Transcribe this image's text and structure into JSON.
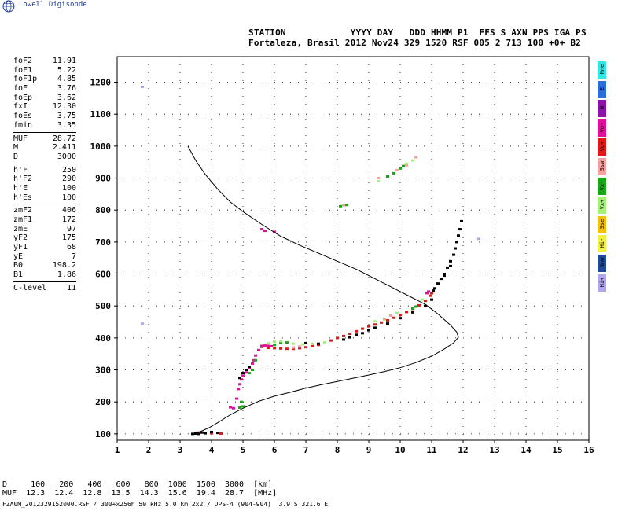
{
  "brand": "Lowell Digisonde",
  "header": {
    "line1": "STATION            YYYY DAY   DDD HHMM P1  FFS S AXN PPS IGA PS",
    "line2": "Fortaleza, Brasil 2012 Nov24 329 1520 RSF 005 2 713 100 +0+ B2"
  },
  "params": [
    {
      "name": "foF2",
      "value": "11.91"
    },
    {
      "name": "foF1",
      "value": "5.22"
    },
    {
      "name": "foF1p",
      "value": "4.85"
    },
    {
      "name": "foE",
      "value": "3.76"
    },
    {
      "name": "foEp",
      "value": "3.62"
    },
    {
      "name": "fxI",
      "value": "12.30"
    },
    {
      "name": "foEs",
      "value": "3.75"
    },
    {
      "name": "fmin",
      "value": "3.35"
    },
    {
      "name": "MUF",
      "value": "28.72"
    },
    {
      "name": "M",
      "value": "2.411"
    },
    {
      "name": "D",
      "value": "3000"
    },
    {
      "name": "h'F",
      "value": "250"
    },
    {
      "name": "h'F2",
      "value": "290"
    },
    {
      "name": "h'E",
      "value": "100"
    },
    {
      "name": "h'Es",
      "value": "100"
    },
    {
      "name": "zmF2",
      "value": "406"
    },
    {
      "name": "zmF1",
      "value": "172"
    },
    {
      "name": "zmE",
      "value": "97"
    },
    {
      "name": "yF2",
      "value": "175"
    },
    {
      "name": "yF1",
      "value": "68"
    },
    {
      "name": "yE",
      "value": "7"
    },
    {
      "name": "B0",
      "value": "198.2"
    },
    {
      "name": "B1",
      "value": "1.86"
    },
    {
      "name": "C-level",
      "value": "11"
    }
  ],
  "legend": [
    {
      "label": "Nne",
      "color": "#33e6e6"
    },
    {
      "label": "E",
      "color": "#2b6fd6"
    },
    {
      "label": "W",
      "color": "#8a13a8"
    },
    {
      "label": "Vo-",
      "color": "#e0109a"
    },
    {
      "label": "Vo+",
      "color": "#e01818"
    },
    {
      "label": "Ssw",
      "color": "#f2a0a0"
    },
    {
      "label": "Vx-",
      "color": "#17a717"
    },
    {
      "label": "Vx+",
      "color": "#a6f07a"
    },
    {
      "label": "Sse",
      "color": "#f2c10d"
    },
    {
      "label": "Hi-",
      "color": "#f0f04a"
    },
    {
      "label": "Nnw",
      "color": "#1f4a9a"
    },
    {
      "label": "Hi+",
      "color": "#b0a8ea"
    }
  ],
  "muf_table": {
    "d_line": "D     100   200   400   600   800  1000  1500  3000  [km]",
    "muf_line": "MUF  12.3  12.4  12.8  13.5  14.3  15.6  19.4  28.7  [MHz]"
  },
  "footer": "FZA0M_2012329152000.RSF / 300+x256h 50 kHz 5.0 km 2x2 / DPS-4 (904-904)  3.9 S 321.6 E",
  "chart_data": {
    "type": "scatter",
    "title": "",
    "xlabel": "",
    "ylabel": "",
    "xlim": [
      1,
      16
    ],
    "ylim": [
      80,
      1280
    ],
    "x_ticks": [
      "1",
      "2",
      "3",
      "4",
      "5",
      "6",
      "7",
      "8",
      "9",
      "10",
      "11",
      "12",
      "13",
      "14",
      "15",
      "16"
    ],
    "y_ticks": [
      "100",
      "200",
      "300",
      "400",
      "500",
      "600",
      "700",
      "800",
      "900",
      "1000",
      "1100",
      "1200"
    ],
    "grid": true,
    "series": [
      {
        "name": "Vo+",
        "color": "#e01818",
        "points": [
          [
            5.6,
            372
          ],
          [
            5.8,
            369
          ],
          [
            6.0,
            368
          ],
          [
            6.2,
            367
          ],
          [
            6.4,
            366
          ],
          [
            6.6,
            366
          ],
          [
            6.8,
            368
          ],
          [
            7.0,
            371
          ],
          [
            7.2,
            374
          ],
          [
            7.4,
            378
          ],
          [
            7.6,
            384
          ],
          [
            7.8,
            392
          ],
          [
            8.0,
            400
          ],
          [
            8.2,
            406
          ],
          [
            8.4,
            413
          ],
          [
            8.6,
            421
          ],
          [
            8.8,
            429
          ],
          [
            9.0,
            436
          ],
          [
            9.2,
            442
          ],
          [
            9.4,
            448
          ],
          [
            9.6,
            455
          ],
          [
            9.8,
            463
          ],
          [
            10.0,
            472
          ],
          [
            10.2,
            481
          ],
          [
            10.4,
            491
          ],
          [
            10.6,
            502
          ],
          [
            10.8,
            516
          ],
          [
            10.95,
            532
          ],
          [
            11.0,
            540
          ],
          [
            4.0,
            102
          ],
          [
            4.2,
            103
          ],
          [
            3.6,
            104
          ],
          [
            4.3,
            101
          ]
        ]
      },
      {
        "name": "Vo-",
        "color": "#e0109a",
        "points": [
          [
            4.7,
            180
          ],
          [
            4.8,
            210
          ],
          [
            4.85,
            240
          ],
          [
            4.9,
            255
          ],
          [
            4.95,
            270
          ],
          [
            5.0,
            282
          ],
          [
            5.1,
            292
          ],
          [
            5.2,
            305
          ],
          [
            5.3,
            320
          ],
          [
            5.35,
            330
          ],
          [
            5.4,
            345
          ],
          [
            5.5,
            362
          ],
          [
            5.6,
            375
          ],
          [
            5.7,
            376
          ],
          [
            5.8,
            375
          ],
          [
            5.9,
            374
          ],
          [
            5.6,
            740
          ],
          [
            5.7,
            735
          ],
          [
            6.0,
            732
          ],
          [
            10.85,
            540
          ],
          [
            10.9,
            545
          ],
          [
            4.6,
            183
          ]
        ]
      },
      {
        "name": "Vx-",
        "color": "#17a717",
        "points": [
          [
            4.9,
            182
          ],
          [
            5.0,
            186
          ],
          [
            4.95,
            200
          ],
          [
            5.2,
            290
          ],
          [
            5.3,
            300
          ],
          [
            5.4,
            330
          ],
          [
            6.0,
            378
          ],
          [
            6.2,
            384
          ],
          [
            6.4,
            386
          ],
          [
            10.4,
            492
          ],
          [
            10.5,
            498
          ],
          [
            8.1,
            812
          ],
          [
            8.3,
            816
          ],
          [
            9.6,
            905
          ],
          [
            9.8,
            915
          ],
          [
            10.1,
            938
          ],
          [
            10.0,
            930
          ]
        ]
      },
      {
        "name": "Vx+",
        "color": "#a6f07a",
        "points": [
          [
            5.8,
            383
          ],
          [
            6.0,
            388
          ],
          [
            6.2,
            390
          ],
          [
            6.6,
            382
          ],
          [
            6.9,
            380
          ],
          [
            7.2,
            382
          ],
          [
            7.6,
            386
          ],
          [
            9.2,
            452
          ],
          [
            9.5,
            458
          ],
          [
            9.9,
            478
          ],
          [
            10.7,
            520
          ],
          [
            9.3,
            890
          ],
          [
            10.2,
            945
          ],
          [
            10.4,
            955
          ]
        ]
      },
      {
        "name": "Ssw",
        "color": "#f2a0a0",
        "points": [
          [
            6.6,
            370
          ],
          [
            6.8,
            373
          ],
          [
            9.5,
            460
          ],
          [
            9.7,
            470
          ],
          [
            8.2,
            815
          ],
          [
            9.3,
            900
          ],
          [
            9.9,
            925
          ],
          [
            10.2,
            940
          ],
          [
            10.5,
            965
          ]
        ]
      },
      {
        "name": "Hi+",
        "color": "#b0a8ea",
        "points": [
          [
            12.5,
            710
          ],
          [
            1.8,
            445
          ],
          [
            1.8,
            1185
          ]
        ]
      },
      {
        "name": "unclassified",
        "color": "#000000",
        "points": [
          [
            3.4,
            100
          ],
          [
            3.5,
            101
          ],
          [
            3.6,
            100
          ],
          [
            3.8,
            102
          ],
          [
            4.0,
            106
          ],
          [
            4.2,
            103
          ],
          [
            3.7,
            104
          ],
          [
            4.9,
            275
          ],
          [
            5.0,
            290
          ],
          [
            5.1,
            300
          ],
          [
            5.2,
            310
          ],
          [
            7.0,
            384
          ],
          [
            7.4,
            382
          ],
          [
            8.2,
            395
          ],
          [
            8.4,
            402
          ],
          [
            8.6,
            410
          ],
          [
            8.8,
            415
          ],
          [
            9.0,
            424
          ],
          [
            9.2,
            432
          ],
          [
            9.6,
            445
          ],
          [
            10.0,
            462
          ],
          [
            10.4,
            480
          ],
          [
            10.8,
            500
          ],
          [
            11.0,
            520
          ],
          [
            11.05,
            548
          ],
          [
            11.1,
            555
          ],
          [
            11.2,
            570
          ],
          [
            11.3,
            585
          ],
          [
            11.4,
            600
          ],
          [
            11.5,
            620
          ],
          [
            11.6,
            640
          ],
          [
            11.7,
            660
          ],
          [
            11.75,
            680
          ],
          [
            11.8,
            700
          ],
          [
            11.85,
            720
          ],
          [
            11.9,
            740
          ],
          [
            11.95,
            765
          ],
          [
            11.6,
            625
          ],
          [
            11.4,
            595
          ]
        ]
      },
      {
        "name": "profile",
        "color": "#000000",
        "line": true,
        "points": [
          [
            3.35,
            100
          ],
          [
            3.6,
            105
          ],
          [
            3.9,
            118
          ],
          [
            4.2,
            135
          ],
          [
            4.6,
            160
          ],
          [
            5.0,
            180
          ],
          [
            5.5,
            202
          ],
          [
            6.0,
            218
          ],
          [
            6.5,
            230
          ],
          [
            7.0,
            243
          ],
          [
            7.5,
            254
          ],
          [
            8.0,
            264
          ],
          [
            8.5,
            274
          ],
          [
            9.0,
            284
          ],
          [
            9.5,
            295
          ],
          [
            10.0,
            307
          ],
          [
            10.5,
            323
          ],
          [
            11.0,
            343
          ],
          [
            11.4,
            365
          ],
          [
            11.7,
            385
          ],
          [
            11.85,
            402
          ],
          [
            11.8,
            418
          ],
          [
            11.6,
            440
          ],
          [
            11.2,
            475
          ],
          [
            10.8,
            505
          ],
          [
            10.3,
            530
          ],
          [
            9.8,
            555
          ],
          [
            9.2,
            585
          ],
          [
            8.6,
            615
          ],
          [
            8.0,
            640
          ],
          [
            7.4,
            665
          ],
          [
            6.8,
            690
          ],
          [
            6.2,
            718
          ],
          [
            5.6,
            755
          ],
          [
            5.0,
            795
          ],
          [
            4.6,
            825
          ],
          [
            4.2,
            865
          ],
          [
            3.8,
            912
          ],
          [
            3.5,
            955
          ],
          [
            3.25,
            1000
          ]
        ]
      }
    ]
  }
}
